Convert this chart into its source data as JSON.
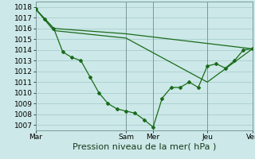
{
  "background_color": "#cce8e8",
  "grid_color": "#aacece",
  "line_color": "#1a6b1a",
  "marker_color": "#1a6b1a",
  "xlabel": "Pression niveau de la mer( hPa )",
  "xlabel_fontsize": 8,
  "ylim": [
    1006.5,
    1018.5
  ],
  "yticks": [
    1007,
    1008,
    1009,
    1010,
    1011,
    1012,
    1013,
    1014,
    1015,
    1016,
    1017,
    1018
  ],
  "xtick_labels": [
    "Mar",
    "Sam",
    "Mer",
    "Jeu",
    "Ven"
  ],
  "xtick_positions": [
    0,
    10,
    13,
    19,
    24
  ],
  "xlim": [
    0,
    24
  ],
  "series1_x": [
    0,
    1,
    2,
    3,
    4,
    5,
    6,
    7,
    8,
    9,
    10,
    11,
    12,
    13,
    14,
    15,
    16,
    17,
    18,
    19,
    20,
    21,
    22,
    23,
    24
  ],
  "series1_y": [
    1017.8,
    1016.9,
    1016.0,
    1013.8,
    1013.3,
    1013.0,
    1011.5,
    1010.0,
    1009.0,
    1008.5,
    1008.3,
    1008.1,
    1007.5,
    1006.8,
    1009.5,
    1010.5,
    1010.5,
    1011.0,
    1010.5,
    1012.5,
    1012.7,
    1012.3,
    1013.0,
    1014.0,
    1014.1
  ],
  "series2_x": [
    0,
    2,
    10,
    24
  ],
  "series2_y": [
    1017.8,
    1016.0,
    1015.5,
    1014.1
  ],
  "series3_x": [
    0,
    2,
    10,
    19,
    24
  ],
  "series3_y": [
    1017.8,
    1015.8,
    1015.1,
    1011.0,
    1014.1
  ],
  "vlines": [
    0,
    10,
    13,
    19,
    24
  ]
}
